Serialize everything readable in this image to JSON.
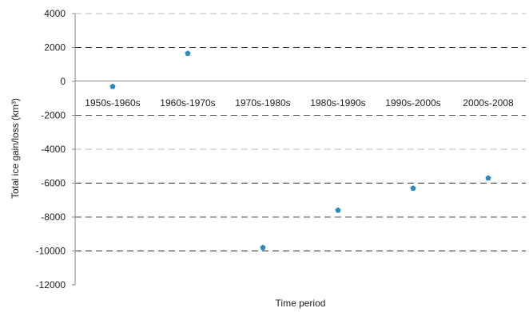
{
  "chart_data": {
    "type": "scatter",
    "categories": [
      "1950s-1960s",
      "1960s-1970s",
      "1970s-1980s",
      "1980s-1990s",
      "1990s-2000s",
      "2000s-2008"
    ],
    "values": [
      -300,
      1650,
      -9800,
      -7600,
      -6300,
      -5700
    ],
    "title": "",
    "xlabel": "Time period",
    "ylabel": "Total ice gain/loss (km³)",
    "ylim": [
      -12000,
      4000
    ],
    "yticks": [
      "4000",
      "2000",
      "0",
      "-2000",
      "-4000",
      "-6000",
      "-8000",
      "-10000",
      "-12000"
    ],
    "grid": true,
    "legend": "none",
    "marker_color": "#2a8ac4",
    "grid_colors": {
      "4000": "#bbbbbb",
      "2000": "#333333",
      "-2000": "#555555",
      "-4000": "#bbbbbb",
      "-6000": "#333333",
      "-8000": "#555555",
      "-10000": "#333333"
    }
  }
}
